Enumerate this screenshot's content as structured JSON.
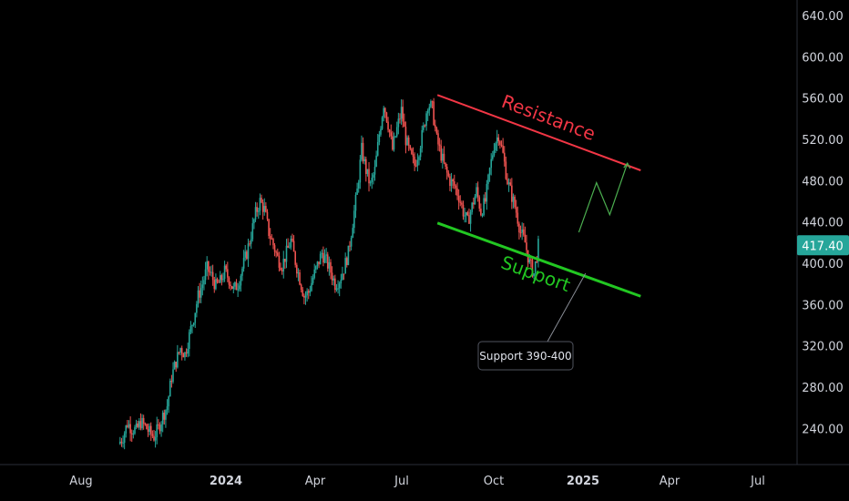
{
  "colors": {
    "background": "#000000",
    "up": "#26a69a",
    "down": "#ef5350",
    "resistance": "#f23645",
    "support": "#22c722",
    "projection": "#4caf50",
    "axis_text": "#d1d4dc",
    "price_tag": "#26a69a"
  },
  "chart_data": {
    "type": "candlestick",
    "title": "",
    "y_ticks": [
      "640.00",
      "600.00",
      "560.00",
      "520.00",
      "480.00",
      "440.00",
      "400.00",
      "360.00",
      "320.00",
      "280.00",
      "240.00"
    ],
    "x_ticks": [
      "Aug",
      "2024",
      "Apr",
      "Jul",
      "Oct",
      "2025",
      "Apr",
      "Jul"
    ],
    "ylim": [
      205,
      655
    ],
    "current_price": "417.40",
    "closes_weekly": [
      225,
      232,
      245,
      240,
      238,
      246,
      242,
      236,
      232,
      240,
      252,
      262,
      290,
      305,
      318,
      312,
      330,
      348,
      368,
      380,
      395,
      388,
      378,
      382,
      392,
      385,
      374,
      380,
      395,
      410,
      428,
      448,
      460,
      452,
      430,
      418,
      405,
      398,
      410,
      422,
      402,
      385,
      368,
      372,
      386,
      398,
      410,
      402,
      392,
      380,
      384,
      395,
      410,
      440,
      470,
      510,
      490,
      475,
      490,
      525,
      555,
      535,
      510,
      530,
      548,
      520,
      505,
      495,
      510,
      530,
      555,
      550,
      520,
      505,
      490,
      480,
      475,
      465,
      450,
      440,
      455,
      470,
      450,
      460,
      490,
      515,
      525,
      505,
      480,
      465,
      450,
      430,
      420,
      400,
      390,
      417
    ],
    "resistance_line": {
      "label": "Resistance",
      "start": {
        "week": 72,
        "price": 563
      },
      "end": {
        "week": 118,
        "price": 490
      }
    },
    "support_line": {
      "label": "Support",
      "start": {
        "week": 72,
        "price": 439
      },
      "end": {
        "week": 118,
        "price": 368
      }
    },
    "projection_path": [
      {
        "week": 104,
        "price": 430
      },
      {
        "week": 108,
        "price": 478
      },
      {
        "week": 111,
        "price": 447
      },
      {
        "week": 115,
        "price": 497
      }
    ],
    "note": "Support 390-400"
  }
}
